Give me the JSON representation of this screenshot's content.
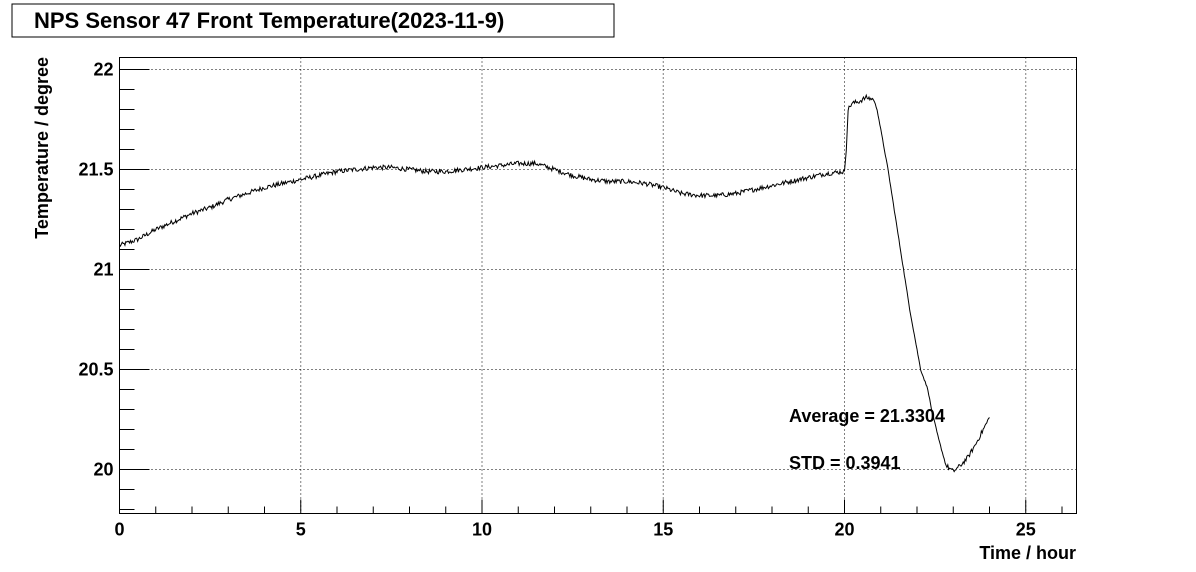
{
  "chart_data": {
    "type": "line",
    "title": "NPS Sensor 47 Front Temperature(2023-11-9)",
    "xlabel": "Time / hour",
    "ylabel": "Temperature / degree",
    "xlim": [
      0,
      26.4
    ],
    "ylim": [
      19.78,
      22.06
    ],
    "xticks": [
      0,
      5,
      10,
      15,
      20,
      25
    ],
    "xtick_labels": [
      "0",
      "5",
      "10",
      "15",
      "20",
      "25"
    ],
    "yticks": [
      20,
      20.5,
      21,
      21.5,
      22
    ],
    "ytick_labels": [
      "20",
      "20.5",
      "21",
      "21.5",
      "22"
    ],
    "grid": true,
    "annotations": [
      "Average = 21.3304",
      "STD = 0.3941"
    ],
    "series": [
      {
        "color": "#000000",
        "x": [
          0,
          0.5,
          1,
          1.5,
          2,
          2.5,
          3,
          3.5,
          4,
          4.5,
          5,
          5.5,
          6,
          6.5,
          7,
          7.5,
          8,
          8.5,
          9,
          9.5,
          10,
          10.5,
          11,
          11.5,
          12,
          12.5,
          13,
          13.5,
          14,
          14.5,
          15,
          15.5,
          16,
          16.5,
          17,
          17.5,
          18,
          18.5,
          19,
          19.5,
          20,
          20.05,
          20.1,
          20.2,
          20.4,
          20.6,
          20.8,
          20.9,
          21.2,
          21.5,
          21.8,
          22.1,
          22.3,
          22.4,
          22.6,
          22.8,
          23.0,
          23.2,
          23.4,
          23.6,
          23.8,
          24.0
        ],
        "y": [
          21.12,
          21.15,
          21.2,
          21.24,
          21.28,
          21.31,
          21.35,
          21.38,
          21.41,
          21.43,
          21.45,
          21.47,
          21.49,
          21.5,
          21.51,
          21.51,
          21.5,
          21.49,
          21.49,
          21.5,
          21.51,
          21.52,
          21.53,
          21.53,
          21.5,
          21.47,
          21.45,
          21.44,
          21.44,
          21.43,
          21.41,
          21.38,
          21.37,
          21.37,
          21.38,
          21.4,
          21.42,
          21.44,
          21.46,
          21.48,
          21.49,
          21.6,
          21.8,
          21.83,
          21.84,
          21.86,
          21.85,
          21.8,
          21.5,
          21.15,
          20.8,
          20.5,
          20.4,
          20.3,
          20.15,
          20.02,
          19.99,
          20.02,
          20.06,
          20.12,
          20.19,
          20.26
        ]
      }
    ]
  }
}
